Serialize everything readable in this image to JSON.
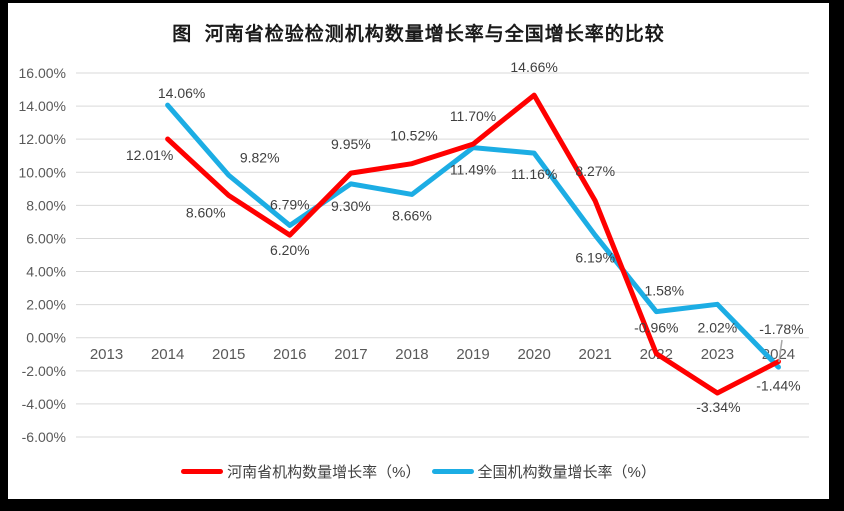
{
  "title": "图  河南省检验检测机构数量增长率与全国增长率的比较",
  "chart_data": {
    "type": "line",
    "categories": [
      "2013",
      "2014",
      "2015",
      "2016",
      "2017",
      "2018",
      "2019",
      "2020",
      "2021",
      "2022",
      "2023",
      "2024"
    ],
    "series": [
      {
        "name": "河南省机构数量增长率（%）",
        "color": "#FF0000",
        "values": [
          null,
          12.01,
          8.6,
          6.2,
          9.95,
          10.52,
          11.7,
          14.66,
          8.27,
          -0.96,
          -3.34,
          -1.44
        ],
        "labels": [
          "",
          "12.01%",
          "8.60%",
          "6.20%",
          "9.95%",
          "10.52%",
          "11.70%",
          "14.66%",
          "8.27%",
          "-0.96%",
          "-3.34%",
          "-1.44%"
        ]
      },
      {
        "name": "全国机构数量增长率（%）",
        "color": "#1CADE4",
        "values": [
          null,
          14.06,
          9.82,
          6.79,
          9.3,
          8.66,
          11.49,
          11.16,
          6.19,
          1.58,
          2.02,
          -1.78
        ],
        "labels": [
          "",
          "14.06%",
          "9.82%",
          "6.79%",
          "9.30%",
          "8.66%",
          "11.49%",
          "11.16%",
          "6.19%",
          "1.58%",
          "2.02%",
          "-1.78%"
        ]
      }
    ],
    "ylim": [
      -6,
      16
    ],
    "ytick_step": 2,
    "yticks": [
      "16.00%",
      "14.00%",
      "12.00%",
      "10.00%",
      "8.00%",
      "6.00%",
      "4.00%",
      "2.00%",
      "0.00%",
      "-2.00%",
      "-4.00%",
      "-6.00%"
    ],
    "grid": true,
    "legend_position": "bottom",
    "data_labels": true
  },
  "colors": {
    "frame": "#000000",
    "background": "#FFFFFF",
    "gridline": "#D9D9D9",
    "axis_text": "#595959",
    "data_label_text": "#404040",
    "title_text": "#1A1A1A",
    "legend_text": "#404040",
    "leader_line": "#A6A6A6"
  }
}
